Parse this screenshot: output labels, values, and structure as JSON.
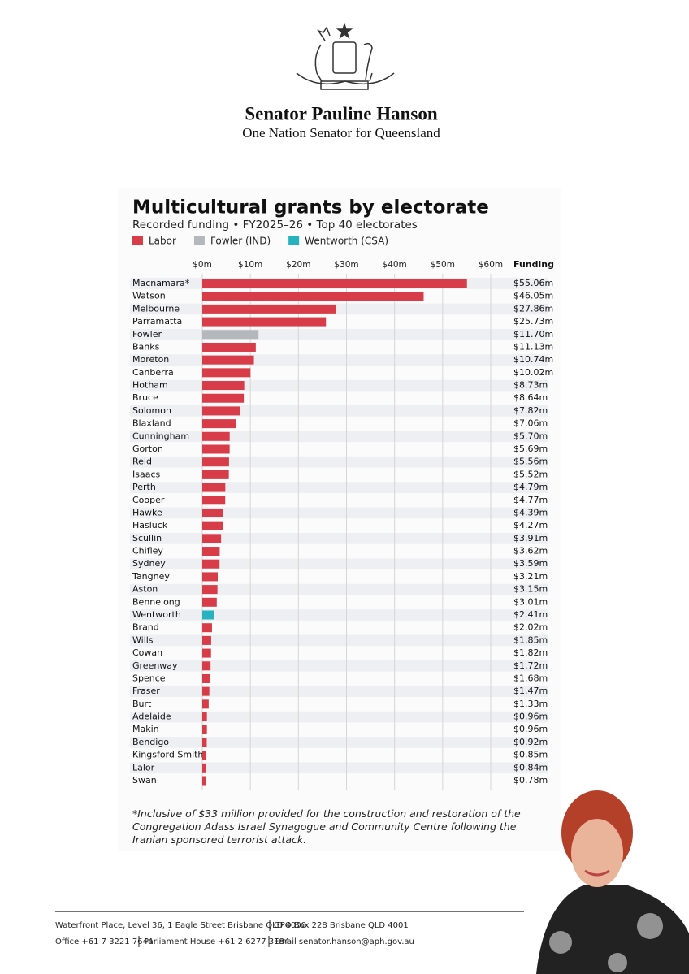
{
  "header": {
    "title": "Senator Pauline Hanson",
    "subtitle": "One Nation Senator for Queensland"
  },
  "chart_data": {
    "type": "hbar",
    "title": "Multicultural grants by electorate",
    "subtitle": "Recorded funding • FY2025–26 • Top 40 electorates",
    "value_column_title": "Funding",
    "categories": [
      "Macnamara*",
      "Watson",
      "Melbourne",
      "Parramatta",
      "Fowler",
      "Banks",
      "Moreton",
      "Canberra",
      "Hotham",
      "Bruce",
      "Solomon",
      "Blaxland",
      "Cunningham",
      "Gorton",
      "Reid",
      "Isaacs",
      "Perth",
      "Cooper",
      "Hawke",
      "Hasluck",
      "Scullin",
      "Chifley",
      "Sydney",
      "Tangney",
      "Aston",
      "Bennelong",
      "Wentworth",
      "Brand",
      "Wills",
      "Cowan",
      "Greenway",
      "Spence",
      "Fraser",
      "Burt",
      "Adelaide",
      "Makin",
      "Bendigo",
      "Kingsford Smith",
      "Lalor",
      "Swan"
    ],
    "series": [
      {
        "name": "Labor",
        "color": "#d83c48",
        "values": [
          55.06,
          46.05,
          27.86,
          25.73,
          null,
          11.13,
          10.74,
          10.02,
          8.73,
          8.64,
          7.82,
          7.06,
          5.7,
          5.69,
          5.56,
          5.52,
          4.79,
          4.77,
          4.39,
          4.27,
          3.91,
          3.62,
          3.59,
          3.21,
          3.15,
          3.01,
          null,
          2.02,
          1.85,
          1.82,
          1.72,
          1.68,
          1.47,
          1.33,
          0.96,
          0.96,
          0.92,
          0.85,
          0.84,
          0.78
        ],
        "value_labels": [
          "$55.06m",
          "$46.05m",
          "$27.86m",
          "$25.73m",
          null,
          "$11.13m",
          "$10.74m",
          "$10.02m",
          "$8.73m",
          "$8.64m",
          "$7.82m",
          "$7.06m",
          "$5.70m",
          "$5.69m",
          "$5.56m",
          "$5.52m",
          "$4.79m",
          "$4.77m",
          "$4.39m",
          "$4.27m",
          "$3.91m",
          "$3.62m",
          "$3.59m",
          "$3.21m",
          "$3.15m",
          "$3.01m",
          null,
          "$2.02m",
          "$1.85m",
          "$1.82m",
          "$1.72m",
          "$1.68m",
          "$1.47m",
          "$1.33m",
          "$0.96m",
          "$0.96m",
          "$0.92m",
          "$0.85m",
          "$0.84m",
          "$0.78m"
        ]
      },
      {
        "name": "Fowler (IND)",
        "color": "#b4b7bb",
        "values": [
          null,
          null,
          null,
          null,
          11.7,
          null,
          null,
          null,
          null,
          null,
          null,
          null,
          null,
          null,
          null,
          null,
          null,
          null,
          null,
          null,
          null,
          null,
          null,
          null,
          null,
          null,
          null,
          null,
          null,
          null,
          null,
          null,
          null,
          null,
          null,
          null,
          null,
          null,
          null,
          null
        ],
        "value_labels": [
          null,
          null,
          null,
          null,
          "$11.70m",
          null,
          null,
          null,
          null,
          null,
          null,
          null,
          null,
          null,
          null,
          null,
          null,
          null,
          null,
          null,
          null,
          null,
          null,
          null,
          null,
          null,
          null,
          null,
          null,
          null,
          null,
          null,
          null,
          null,
          null,
          null,
          null,
          null,
          null,
          null
        ]
      },
      {
        "name": "Wentworth (CSA)",
        "color": "#27b2c0",
        "values": [
          null,
          null,
          null,
          null,
          null,
          null,
          null,
          null,
          null,
          null,
          null,
          null,
          null,
          null,
          null,
          null,
          null,
          null,
          null,
          null,
          null,
          null,
          null,
          null,
          null,
          null,
          2.41,
          null,
          null,
          null,
          null,
          null,
          null,
          null,
          null,
          null,
          null,
          null,
          null,
          null
        ],
        "value_labels": [
          null,
          null,
          null,
          null,
          null,
          null,
          null,
          null,
          null,
          null,
          null,
          null,
          null,
          null,
          null,
          null,
          null,
          null,
          null,
          null,
          null,
          null,
          null,
          null,
          null,
          null,
          "$2.41m",
          null,
          null,
          null,
          null,
          null,
          null,
          null,
          null,
          null,
          null,
          null,
          null,
          null
        ]
      }
    ],
    "xlim": [
      0,
      60
    ],
    "xticks": [
      {
        "value": 0,
        "label": "$0m"
      },
      {
        "value": 10,
        "label": "$10m"
      },
      {
        "value": 20,
        "label": "$20m"
      },
      {
        "value": 30,
        "label": "$30m"
      },
      {
        "value": 40,
        "label": "$40m"
      },
      {
        "value": 50,
        "label": "$50m"
      },
      {
        "value": 60,
        "label": "$60m"
      }
    ],
    "grid": true,
    "note": "*Inclusive of $33 million provided for the construction and restoration of the Congregation Adass Israel Synagogue and Community Centre following the Iranian sponsored terrorist attack."
  },
  "footer": {
    "address": "Waterfront Place, Level 36, 1 Eagle Street Brisbane QLD 4000",
    "postal": "GPO Box 228 Brisbane QLD 4001",
    "office": "Office +61 7 3221 7644",
    "parliament": "Parliament House +61 2 6277 3184",
    "email": "Email senator.hanson@aph.gov.au"
  }
}
